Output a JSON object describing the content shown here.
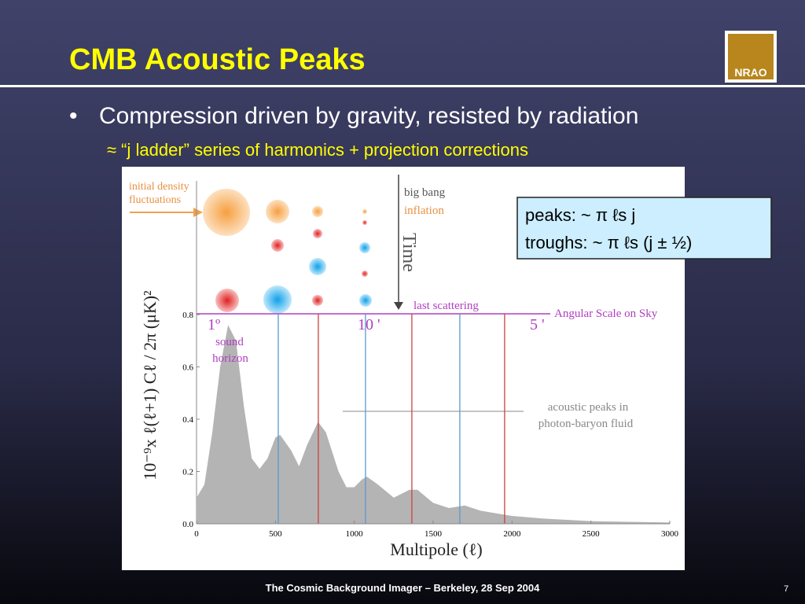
{
  "header": {
    "title": "CMB Acoustic Peaks",
    "logo": "NRAO"
  },
  "bullets": [
    {
      "text": "Compression driven by gravity, resisted by radiation"
    },
    {
      "text": "≈ “j ladder” series of harmonics + projection corrections"
    }
  ],
  "figure": {
    "type": "area",
    "color": "#b4b4b4",
    "x": [
      0,
      50,
      100,
      150,
      200,
      250,
      300,
      350,
      400,
      450,
      500,
      530,
      600,
      650,
      700,
      770,
      820,
      900,
      950,
      1000,
      1050,
      1080,
      1150,
      1250,
      1350,
      1400,
      1500,
      1600,
      1700,
      1800,
      2000,
      2200,
      2500,
      3000
    ],
    "values": [
      0.1,
      0.15,
      0.35,
      0.6,
      0.76,
      0.7,
      0.45,
      0.25,
      0.21,
      0.25,
      0.33,
      0.34,
      0.28,
      0.22,
      0.3,
      0.39,
      0.35,
      0.2,
      0.14,
      0.14,
      0.17,
      0.18,
      0.15,
      0.1,
      0.13,
      0.13,
      0.08,
      0.06,
      0.07,
      0.05,
      0.03,
      0.02,
      0.01,
      0.005
    ],
    "xlim": [
      0,
      3000
    ],
    "xticks": [
      0,
      500,
      1000,
      1500,
      2000,
      2500,
      3000
    ],
    "ylim": [
      0,
      0.8
    ],
    "yticks": [
      {
        "value": 0,
        "label": "0.0"
      },
      {
        "value": 0.2,
        "label": "0.2"
      },
      {
        "value": 0.4,
        "label": "0.4"
      },
      {
        "value": 0.6,
        "label": "0.6"
      },
      {
        "value": 0.8,
        "label": "0.8"
      }
    ],
    "peak_lines": {
      "color": "#5a9ad0",
      "values": [
        518,
        1071,
        1669
      ]
    },
    "trough_lines": {
      "color": "#d04040",
      "values": [
        772,
        1365,
        1953
      ]
    },
    "xlabel": "Multipole (ℓ)",
    "ylabel": "10⁻⁹x ℓ(ℓ+1) Cℓ / 2π  (μK)²",
    "annotations": {
      "initial": [
        "initial density",
        "fluctuations"
      ],
      "big_bang": "big bang",
      "inflation": "inflation",
      "time": "Time",
      "last_scattering": "last scattering",
      "angular": "Angular Scale on Sky",
      "deg1": "1º",
      "min10": "10 '",
      "min5": "5 '",
      "sound": [
        "sound",
        "horizon"
      ],
      "acoustic": [
        "acoustic peaks in",
        "photon-baryon fluid"
      ]
    },
    "callout": [
      "peaks: ~ π ℓs j",
      "troughs: ~ π ℓs (j ± ½)"
    ]
  },
  "footer": {
    "text": "The Cosmic Background Imager – Berkeley, 28 Sep 2004",
    "page": "7"
  }
}
